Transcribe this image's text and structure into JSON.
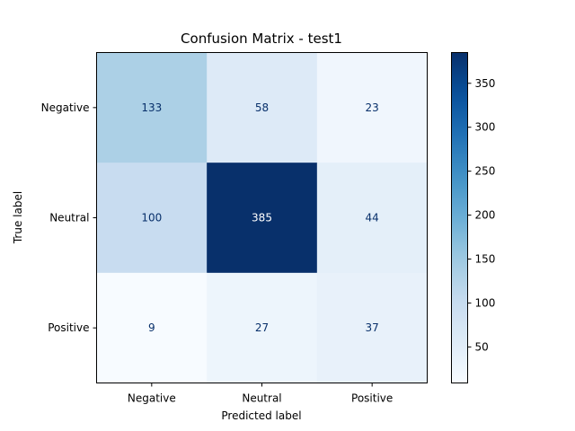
{
  "chart_data": {
    "type": "heatmap",
    "title": "Confusion Matrix - test1",
    "xlabel": "Predicted label",
    "ylabel": "True label",
    "x_categories": [
      "Negative",
      "Neutral",
      "Positive"
    ],
    "y_categories": [
      "Negative",
      "Neutral",
      "Positive"
    ],
    "matrix": [
      [
        133,
        58,
        23
      ],
      [
        100,
        385,
        44
      ],
      [
        9,
        27,
        37
      ]
    ],
    "colormap": "Blues",
    "color_range": [
      9,
      385
    ],
    "colorbar_ticks": [
      50,
      100,
      150,
      200,
      250,
      300,
      350
    ],
    "text_color_light": "#ffffff",
    "text_color_dark": "#08306b"
  }
}
